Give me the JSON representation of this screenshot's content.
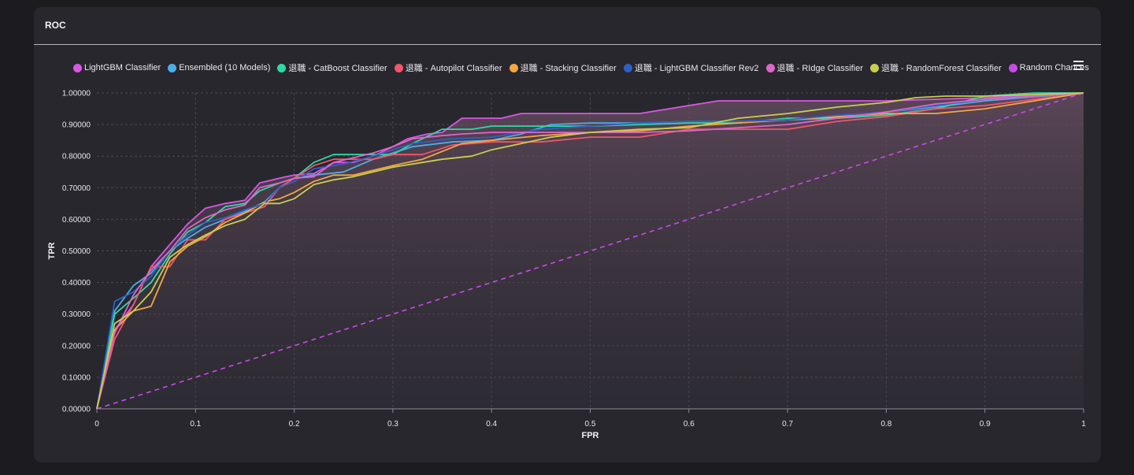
{
  "card": {
    "title": "ROC"
  },
  "menu": {
    "icon": "hamburger-menu-icon"
  },
  "colors": {
    "background": "#1c1c20",
    "card": "#28272e",
    "grid": "#4a4950",
    "axis": "#8e8e96"
  },
  "chart_data": {
    "type": "line",
    "title": "ROC",
    "xlabel": "FPR",
    "ylabel": "TPR",
    "xlim": [
      0,
      1
    ],
    "ylim": [
      0,
      1
    ],
    "grid": true,
    "legend_position": "top",
    "x_ticks": [
      0,
      0.1,
      0.2,
      0.3,
      0.4,
      0.5,
      0.6,
      0.7,
      0.8,
      0.9,
      1
    ],
    "x_tick_labels": [
      "0",
      "0.1",
      "0.2",
      "0.3",
      "0.4",
      "0.5",
      "0.6",
      "0.7",
      "0.8",
      "0.9",
      "1"
    ],
    "y_ticks": [
      0,
      0.1,
      0.2,
      0.3,
      0.4,
      0.5,
      0.6,
      0.7,
      0.8,
      0.9,
      1
    ],
    "y_tick_labels": [
      "0.00000",
      "0.10000",
      "0.20000",
      "0.30000",
      "0.40000",
      "0.50000",
      "0.60000",
      "0.70000",
      "0.80000",
      "0.90000",
      "1.00000"
    ],
    "series": [
      {
        "name": "LightGBM Classifier",
        "color": "#d957e6",
        "x": [
          0,
          0.018,
          0.037,
          0.055,
          0.074,
          0.092,
          0.11,
          0.13,
          0.15,
          0.165,
          0.185,
          0.2,
          0.22,
          0.24,
          0.26,
          0.28,
          0.3,
          0.315,
          0.335,
          0.35,
          0.37,
          0.39,
          0.41,
          0.43,
          0.45,
          0.48,
          0.5,
          0.55,
          0.6,
          0.63,
          0.7,
          0.8,
          0.9,
          1
        ],
        "y": [
          0,
          0.25,
          0.33,
          0.45,
          0.52,
          0.585,
          0.635,
          0.65,
          0.66,
          0.715,
          0.73,
          0.74,
          0.745,
          0.78,
          0.78,
          0.8,
          0.83,
          0.855,
          0.87,
          0.875,
          0.92,
          0.92,
          0.92,
          0.935,
          0.935,
          0.935,
          0.935,
          0.935,
          0.96,
          0.975,
          0.975,
          0.975,
          0.985,
          1
        ]
      },
      {
        "name": "Ensembled (10 Models)",
        "color": "#4aaee8",
        "x": [
          0,
          0.018,
          0.037,
          0.055,
          0.074,
          0.092,
          0.11,
          0.13,
          0.15,
          0.17,
          0.185,
          0.2,
          0.22,
          0.25,
          0.28,
          0.32,
          0.36,
          0.4,
          0.43,
          0.46,
          0.5,
          0.55,
          0.6,
          0.65,
          0.7,
          0.75,
          0.8,
          0.85,
          0.9,
          1
        ],
        "y": [
          0,
          0.31,
          0.39,
          0.43,
          0.5,
          0.54,
          0.575,
          0.6,
          0.625,
          0.655,
          0.7,
          0.73,
          0.74,
          0.75,
          0.79,
          0.83,
          0.845,
          0.85,
          0.87,
          0.9,
          0.905,
          0.905,
          0.91,
          0.91,
          0.915,
          0.92,
          0.94,
          0.955,
          0.975,
          1
        ]
      },
      {
        "name": "退職 - CatBoost Classifier",
        "color": "#2fd9a6",
        "x": [
          0,
          0.018,
          0.037,
          0.055,
          0.074,
          0.092,
          0.11,
          0.13,
          0.15,
          0.165,
          0.185,
          0.2,
          0.22,
          0.24,
          0.26,
          0.28,
          0.3,
          0.32,
          0.35,
          0.38,
          0.4,
          0.43,
          0.46,
          0.5,
          0.55,
          0.6,
          0.65,
          0.7,
          0.75,
          0.8,
          0.85,
          0.9,
          0.95,
          1
        ],
        "y": [
          0,
          0.3,
          0.35,
          0.4,
          0.49,
          0.56,
          0.59,
          0.64,
          0.65,
          0.69,
          0.715,
          0.73,
          0.78,
          0.805,
          0.805,
          0.805,
          0.805,
          0.84,
          0.885,
          0.885,
          0.895,
          0.895,
          0.895,
          0.895,
          0.9,
          0.905,
          0.905,
          0.92,
          0.92,
          0.93,
          0.95,
          0.99,
          1,
          1
        ]
      },
      {
        "name": "退職 - Autopilot Classifier",
        "color": "#f2556a",
        "x": [
          0,
          0.018,
          0.037,
          0.055,
          0.074,
          0.092,
          0.11,
          0.13,
          0.15,
          0.17,
          0.185,
          0.2,
          0.22,
          0.24,
          0.26,
          0.28,
          0.3,
          0.33,
          0.36,
          0.4,
          0.45,
          0.5,
          0.55,
          0.6,
          0.65,
          0.7,
          0.75,
          0.8,
          0.85,
          0.9,
          1
        ],
        "y": [
          0,
          0.22,
          0.33,
          0.45,
          0.45,
          0.535,
          0.535,
          0.6,
          0.62,
          0.64,
          0.7,
          0.73,
          0.77,
          0.79,
          0.79,
          0.79,
          0.805,
          0.805,
          0.835,
          0.845,
          0.845,
          0.86,
          0.86,
          0.885,
          0.885,
          0.885,
          0.91,
          0.925,
          0.95,
          0.96,
          1
        ]
      },
      {
        "name": "退職 - Stacking Classifier",
        "color": "#f4a742",
        "x": [
          0,
          0.018,
          0.037,
          0.055,
          0.074,
          0.092,
          0.11,
          0.13,
          0.15,
          0.17,
          0.185,
          0.2,
          0.22,
          0.24,
          0.26,
          0.28,
          0.3,
          0.33,
          0.37,
          0.4,
          0.45,
          0.5,
          0.55,
          0.6,
          0.65,
          0.7,
          0.75,
          0.8,
          0.85,
          0.9,
          1
        ],
        "y": [
          0,
          0.25,
          0.31,
          0.325,
          0.465,
          0.515,
          0.545,
          0.59,
          0.62,
          0.655,
          0.665,
          0.685,
          0.72,
          0.74,
          0.74,
          0.755,
          0.77,
          0.79,
          0.84,
          0.85,
          0.865,
          0.875,
          0.88,
          0.895,
          0.905,
          0.915,
          0.925,
          0.935,
          0.935,
          0.95,
          1
        ]
      },
      {
        "name": "退職 - LightGBM Classifier Rev2",
        "color": "#2f5fc4",
        "x": [
          0,
          0.018,
          0.037,
          0.055,
          0.074,
          0.092,
          0.11,
          0.13,
          0.15,
          0.17,
          0.185,
          0.2,
          0.22,
          0.25,
          0.28,
          0.32,
          0.36,
          0.4,
          0.45,
          0.5,
          0.55,
          0.6,
          0.65,
          0.7,
          0.75,
          0.8,
          0.85,
          0.9,
          1
        ],
        "y": [
          0,
          0.34,
          0.37,
          0.42,
          0.5,
          0.55,
          0.59,
          0.605,
          0.63,
          0.65,
          0.7,
          0.72,
          0.76,
          0.775,
          0.8,
          0.84,
          0.855,
          0.86,
          0.885,
          0.895,
          0.905,
          0.91,
          0.91,
          0.915,
          0.93,
          0.94,
          0.96,
          0.98,
          1
        ]
      },
      {
        "name": "退職 - RIdge Classifier",
        "color": "#e065c9",
        "x": [
          0,
          0.018,
          0.037,
          0.055,
          0.074,
          0.092,
          0.11,
          0.13,
          0.15,
          0.165,
          0.185,
          0.2,
          0.22,
          0.24,
          0.26,
          0.28,
          0.3,
          0.32,
          0.35,
          0.37,
          0.4,
          0.45,
          0.5,
          0.55,
          0.6,
          0.65,
          0.7,
          0.75,
          0.8,
          0.85,
          0.9,
          1
        ],
        "y": [
          0,
          0.24,
          0.36,
          0.44,
          0.5,
          0.57,
          0.605,
          0.63,
          0.645,
          0.7,
          0.715,
          0.73,
          0.735,
          0.78,
          0.795,
          0.81,
          0.83,
          0.855,
          0.865,
          0.87,
          0.875,
          0.875,
          0.875,
          0.875,
          0.88,
          0.89,
          0.9,
          0.92,
          0.94,
          0.965,
          0.98,
          1
        ]
      },
      {
        "name": "退職 - RandomForest Classifier",
        "color": "#c8cf4e",
        "x": [
          0,
          0.018,
          0.037,
          0.055,
          0.074,
          0.092,
          0.11,
          0.13,
          0.15,
          0.17,
          0.185,
          0.2,
          0.22,
          0.24,
          0.26,
          0.28,
          0.3,
          0.32,
          0.35,
          0.38,
          0.4,
          0.43,
          0.46,
          0.5,
          0.55,
          0.6,
          0.65,
          0.7,
          0.75,
          0.8,
          0.83,
          0.86,
          0.9,
          1
        ],
        "y": [
          0,
          0.27,
          0.31,
          0.37,
          0.48,
          0.52,
          0.55,
          0.58,
          0.6,
          0.65,
          0.65,
          0.665,
          0.71,
          0.725,
          0.735,
          0.75,
          0.765,
          0.775,
          0.79,
          0.8,
          0.82,
          0.84,
          0.86,
          0.875,
          0.885,
          0.89,
          0.92,
          0.935,
          0.955,
          0.97,
          0.985,
          0.99,
          0.99,
          1
        ]
      },
      {
        "name": "Random Chances",
        "color": "#c84be8",
        "dashed": true,
        "x": [
          0,
          1
        ],
        "y": [
          0,
          1
        ]
      }
    ]
  }
}
